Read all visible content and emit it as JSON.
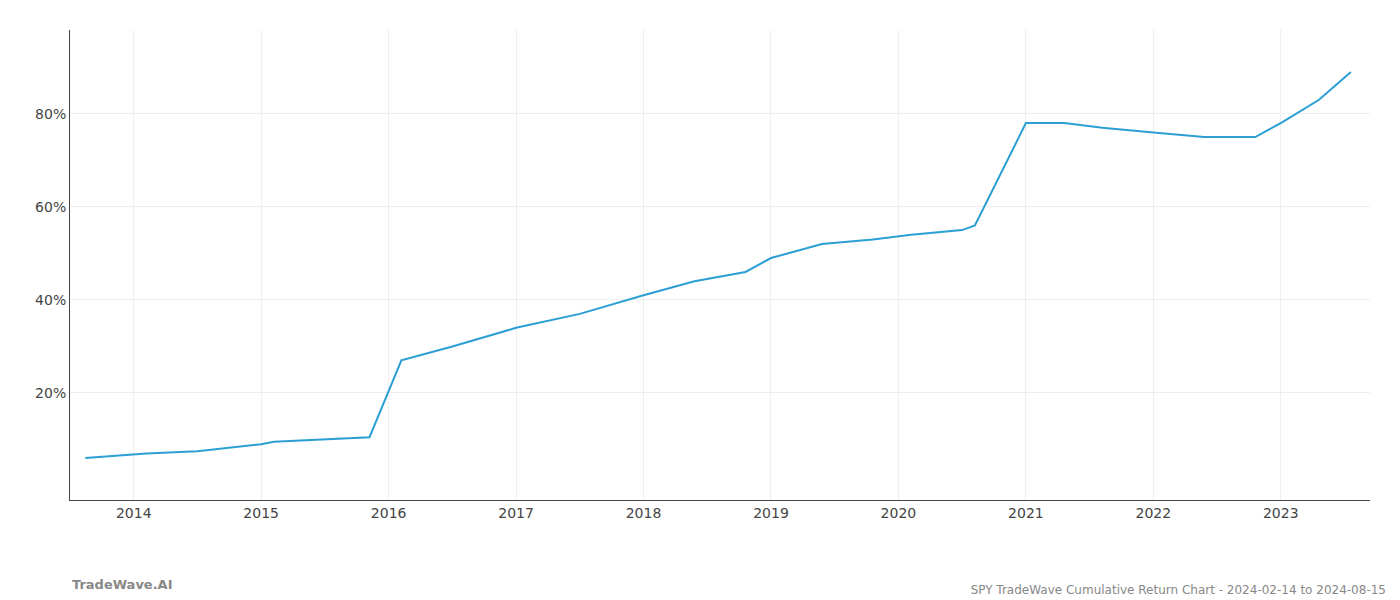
{
  "chart_data": {
    "type": "line",
    "title": "SPY TradeWave Cumulative Return Chart - 2024-02-14 to 2024-08-15",
    "annotations": [
      {
        "text": "TradeWave.AI"
      }
    ],
    "x": [
      2013.62,
      2013.85,
      2014.1,
      2014.5,
      2015.0,
      2015.1,
      2015.5,
      2015.85,
      2016.1,
      2016.5,
      2017.0,
      2017.5,
      2018.0,
      2018.4,
      2018.8,
      2019.0,
      2019.4,
      2019.8,
      2020.1,
      2020.5,
      2020.6,
      2021.0,
      2021.3,
      2021.6,
      2022.0,
      2022.4,
      2022.8,
      2023.0,
      2023.3,
      2023.55
    ],
    "values": [
      6,
      6.5,
      7,
      7.5,
      9,
      9.5,
      10,
      10.5,
      27,
      30,
      34,
      37,
      41,
      44,
      46,
      49,
      52,
      53,
      54,
      55,
      56,
      78,
      78,
      77,
      76,
      75,
      75,
      78,
      83,
      89
    ],
    "color": "#2b9fd4",
    "xlim": [
      2013.5,
      2023.7
    ],
    "xticks": [
      2014,
      2015,
      2016,
      2017,
      2018,
      2019,
      2020,
      2021,
      2022,
      2023
    ],
    "ylim": [
      -3,
      98
    ],
    "yticks": [
      {
        "value": 20,
        "label": "20%"
      },
      {
        "value": 40,
        "label": "40%"
      },
      {
        "value": 60,
        "label": "60%"
      },
      {
        "value": 80,
        "label": "80%"
      }
    ],
    "grid": true
  }
}
